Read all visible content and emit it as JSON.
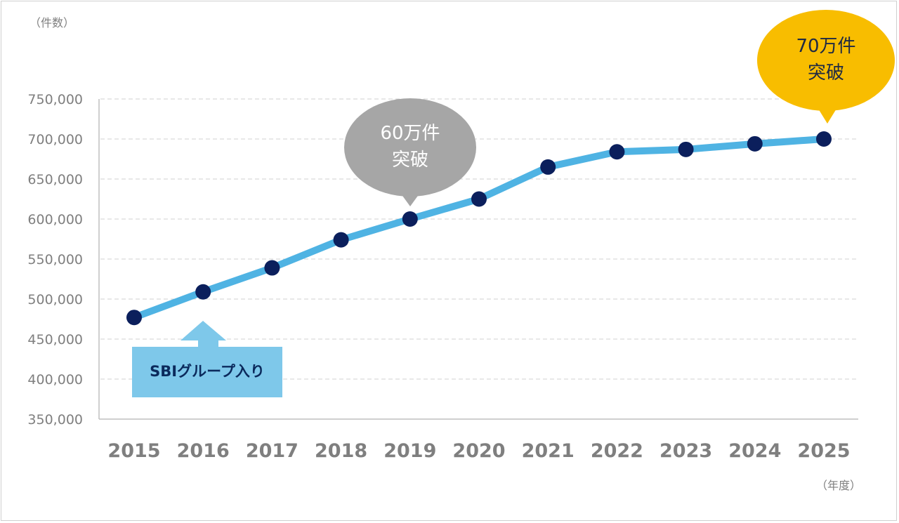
{
  "chart_data": {
    "type": "line",
    "ylabel": "（件数）",
    "xlabel": "（年度）",
    "categories": [
      "2015",
      "2016",
      "2017",
      "2018",
      "2019",
      "2020",
      "2021",
      "2022",
      "2023",
      "2024",
      "2025"
    ],
    "values": [
      477000,
      509000,
      539000,
      574000,
      600000,
      625000,
      665000,
      684000,
      687000,
      694000,
      700000
    ],
    "ylim": [
      350000,
      750000
    ],
    "yticks": [
      "350,000",
      "400,000",
      "450,000",
      "500,000",
      "550,000",
      "600,000",
      "650,000",
      "700,000",
      "750,000"
    ],
    "grid": true,
    "line_color": "#4fb3e3",
    "marker_color": "#0b1f5c",
    "annotations": [
      {
        "text_line1": "60万件",
        "text_line2": "突破",
        "category": "2019",
        "color": "#a6a6a6",
        "text_color": "#ffffff"
      },
      {
        "text_line1": "70万件",
        "text_line2": "突破",
        "category": "2025",
        "color": "#f8bd00",
        "text_color": "#1f2a44"
      },
      {
        "text": "SBIグループ入り",
        "category": "2016",
        "color": "#7ec8ea",
        "text_color": "#0b2a5c"
      }
    ]
  }
}
